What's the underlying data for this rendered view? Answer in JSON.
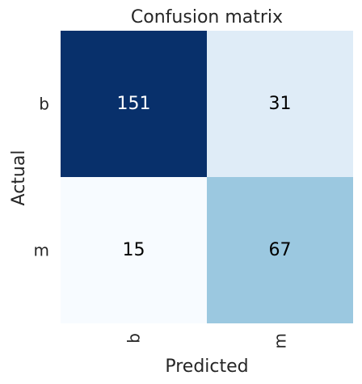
{
  "chart_data": {
    "type": "heatmap",
    "title": "Confusion matrix",
    "xlabel": "Predicted",
    "ylabel": "Actual",
    "x_categories": [
      "b",
      "m"
    ],
    "y_categories": [
      "b",
      "m"
    ],
    "values": [
      [
        151,
        31
      ],
      [
        15,
        67
      ]
    ],
    "colormap": "Blues",
    "colorbar": false,
    "grid": false
  }
}
